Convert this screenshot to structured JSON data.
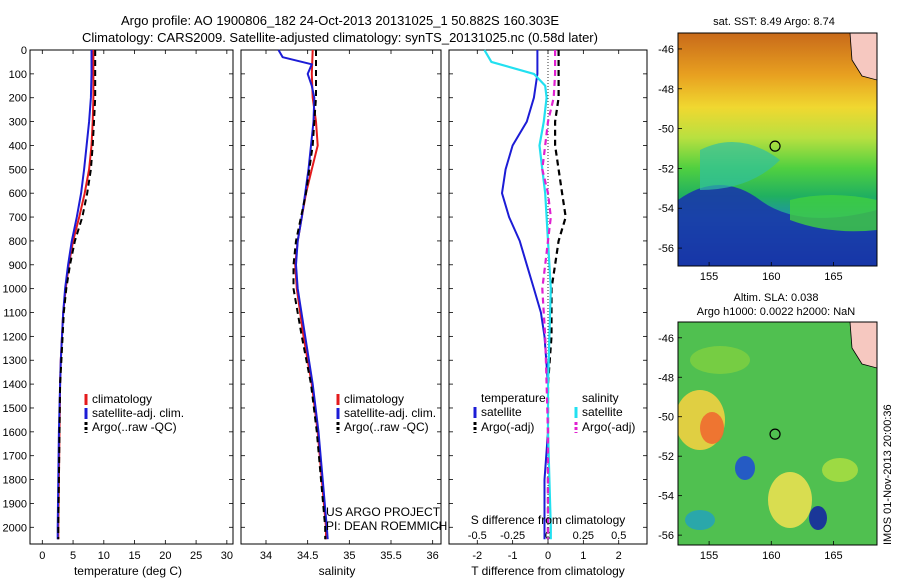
{
  "header": {
    "line1": "Argo profile: AO 1900806_182 24-Oct-2013 20131025_1 50.882S 160.303E",
    "line2": "Climatology: CARS2009. Satellite-adjusted climatology: synTS_20131025.nc (0.58d later)"
  },
  "colors": {
    "climatology": "#e41a1c",
    "satellite": "#1c1cd6",
    "argo": "#000000",
    "sal_satellite": "#22e0f0",
    "sal_argo": "#e020d0"
  },
  "chart_data": [
    {
      "type": "line",
      "name": "temperature-panel",
      "xlabel": "temperature (deg C)",
      "ylabel": "",
      "xlim": [
        -2,
        31
      ],
      "ylim": [
        2070,
        0
      ],
      "xticks": [
        0,
        5,
        10,
        15,
        20,
        25,
        30
      ],
      "yticks": [
        0,
        100,
        200,
        300,
        400,
        500,
        600,
        700,
        800,
        900,
        1000,
        1100,
        1200,
        1300,
        1400,
        1500,
        1600,
        1700,
        1800,
        1900,
        2000
      ],
      "legend": [
        "climatology",
        "satellite-adj. clim.",
        "Argo(..raw -QC)"
      ],
      "series": [
        {
          "name": "climatology",
          "depth": [
            0,
            100,
            200,
            300,
            400,
            500,
            600,
            700,
            800,
            900,
            1000,
            1100,
            1200,
            1300,
            1400,
            1600,
            1800,
            2000,
            2050
          ],
          "values": [
            8.3,
            8.3,
            8.3,
            8.2,
            8.0,
            7.6,
            6.9,
            6.0,
            5.0,
            4.3,
            3.8,
            3.4,
            3.2,
            3.0,
            2.9,
            2.8,
            2.7,
            2.6,
            2.6
          ]
        },
        {
          "name": "satellite-adj. clim.",
          "depth": [
            0,
            100,
            200,
            300,
            400,
            500,
            600,
            700,
            800,
            900,
            1000,
            1100,
            1200,
            1300,
            1400,
            1600,
            1800,
            2000,
            2050
          ],
          "values": [
            8.0,
            8.0,
            7.9,
            7.6,
            7.2,
            6.8,
            6.3,
            5.6,
            4.8,
            4.2,
            3.7,
            3.4,
            3.2,
            3.0,
            2.9,
            2.7,
            2.6,
            2.5,
            2.5
          ]
        },
        {
          "name": "Argo(..raw -QC)",
          "depth": [
            0,
            100,
            200,
            300,
            400,
            500,
            600,
            700,
            800,
            900,
            1000,
            1100,
            1200,
            1300,
            1400,
            1600,
            1800,
            2000,
            2050
          ],
          "values": [
            8.6,
            8.6,
            8.6,
            8.4,
            8.2,
            7.9,
            7.3,
            6.5,
            5.3,
            4.5,
            3.9,
            3.5,
            3.3,
            3.1,
            2.9,
            2.8,
            2.7,
            2.6,
            2.6
          ]
        }
      ]
    },
    {
      "type": "line",
      "name": "salinity-panel",
      "xlabel": "salinity",
      "ylabel": "",
      "xlim": [
        33.7,
        36.1
      ],
      "ylim": [
        2070,
        0
      ],
      "xticks": [
        34,
        34.5,
        35,
        35.5,
        36
      ],
      "legend": [
        "climatology",
        "satellite-adj. clim.",
        "Argo(..raw -QC)"
      ],
      "annotation": [
        "US ARGO PROJECT",
        "PI: DEAN ROEMMICH"
      ],
      "series": [
        {
          "name": "climatology",
          "depth": [
            0,
            100,
            200,
            300,
            400,
            500,
            600,
            700,
            800,
            900,
            1000,
            1200,
            1400,
            1600,
            1800,
            2000,
            2050
          ],
          "values": [
            34.56,
            34.55,
            34.56,
            34.6,
            34.62,
            34.55,
            34.48,
            34.43,
            34.38,
            34.35,
            34.37,
            34.45,
            34.55,
            34.62,
            34.67,
            34.72,
            34.72
          ]
        },
        {
          "name": "satellite-adj. clim.",
          "depth": [
            0,
            30,
            60,
            100,
            150,
            200,
            300,
            400,
            500,
            600,
            700,
            800,
            900,
            1000,
            1200,
            1400,
            1600,
            1800,
            2000,
            2050
          ],
          "values": [
            34.15,
            34.2,
            34.55,
            34.5,
            34.55,
            34.58,
            34.57,
            34.54,
            34.51,
            34.47,
            34.43,
            34.38,
            34.36,
            34.38,
            34.47,
            34.56,
            34.63,
            34.68,
            34.73,
            34.74
          ]
        },
        {
          "name": "Argo(..raw -QC)",
          "depth": [
            0,
            100,
            200,
            300,
            400,
            500,
            600,
            700,
            800,
            900,
            1000,
            1200,
            1400,
            1600,
            1800,
            2000,
            2050
          ],
          "values": [
            34.6,
            34.6,
            34.6,
            34.58,
            34.56,
            34.52,
            34.48,
            34.42,
            34.36,
            34.33,
            34.33,
            34.43,
            34.54,
            34.61,
            34.66,
            34.71,
            34.71
          ]
        }
      ]
    },
    {
      "type": "line",
      "name": "difference-panel",
      "xlabel": "T difference from climatology",
      "xlabel_top": "S difference from climatology",
      "xlim": [
        -2.8,
        2.8
      ],
      "ylim": [
        2070,
        0
      ],
      "xticks": [
        -2,
        -1,
        0,
        1,
        2
      ],
      "xticks_s": [
        -0.5,
        -0.25,
        0,
        0.25,
        0.5
      ],
      "legend_headers": [
        "temperature",
        "salinity"
      ],
      "legend": [
        "satellite",
        "Argo(-adj)",
        "satellite",
        "Argo(-adj)"
      ],
      "series": [
        {
          "name": "T satellite",
          "depth": [
            0,
            100,
            200,
            300,
            400,
            500,
            600,
            700,
            800,
            900,
            1000,
            1100,
            1200,
            1400,
            1600,
            1800,
            2000,
            2050
          ],
          "values": [
            -0.3,
            -0.3,
            -0.4,
            -0.6,
            -1.0,
            -1.2,
            -1.3,
            -1.1,
            -0.8,
            -0.6,
            -0.4,
            -0.2,
            -0.1,
            0.0,
            0.0,
            -0.1,
            -0.1,
            -0.1
          ]
        },
        {
          "name": "T Argo(-adj)",
          "depth": [
            0,
            100,
            200,
            300,
            400,
            500,
            600,
            700,
            800,
            900,
            1000,
            1100,
            1200,
            1400,
            1600,
            1800,
            2000,
            2050
          ],
          "values": [
            0.3,
            0.3,
            0.3,
            0.2,
            0.2,
            0.3,
            0.4,
            0.5,
            0.3,
            0.2,
            0.1,
            0.1,
            0.1,
            0.0,
            0.0,
            0.0,
            0.0,
            0.0
          ]
        },
        {
          "name": "S satellite",
          "depth": [
            0,
            50,
            100,
            150,
            200,
            300,
            400,
            500,
            600,
            700,
            800,
            900,
            1000,
            1200,
            1400,
            1600,
            1800,
            2000,
            2050
          ],
          "values": [
            -0.45,
            -0.4,
            -0.1,
            -0.02,
            -0.01,
            -0.03,
            -0.06,
            -0.04,
            -0.02,
            -0.01,
            0.0,
            0.01,
            0.02,
            0.01,
            0.0,
            0.0,
            0.01,
            0.02,
            0.02
          ]
        },
        {
          "name": "S Argo(-adj)",
          "depth": [
            0,
            100,
            200,
            300,
            400,
            500,
            600,
            700,
            800,
            900,
            1000,
            1200,
            1400,
            1600,
            1800,
            2000,
            2050
          ],
          "values": [
            0.05,
            0.05,
            0.04,
            0.0,
            -0.02,
            -0.04,
            0.0,
            0.02,
            0.0,
            -0.02,
            -0.04,
            -0.02,
            -0.01,
            0.0,
            0.0,
            0.0,
            0.0
          ]
        }
      ]
    },
    {
      "type": "heatmap",
      "name": "sst-map",
      "title": "sat. SST: 8.49 Argo: 8.74",
      "xticks": [
        155,
        160,
        165
      ],
      "yticks": [
        -46,
        -48,
        -50,
        -52,
        -54,
        -56
      ],
      "marker": {
        "lon": 160.303,
        "lat": -50.882
      }
    },
    {
      "type": "heatmap",
      "name": "sla-map",
      "title_line1": "Altim. SLA: 0.038",
      "title_line2": "Argo h1000: 0.0022 h2000: NaN",
      "xticks": [
        155,
        160,
        165
      ],
      "yticks": [
        -46,
        -48,
        -50,
        -52,
        -54,
        -56
      ],
      "marker": {
        "lon": 160.303,
        "lat": -50.882
      }
    }
  ],
  "side_label": "IMOS 01-Nov-2013 20:00:36"
}
